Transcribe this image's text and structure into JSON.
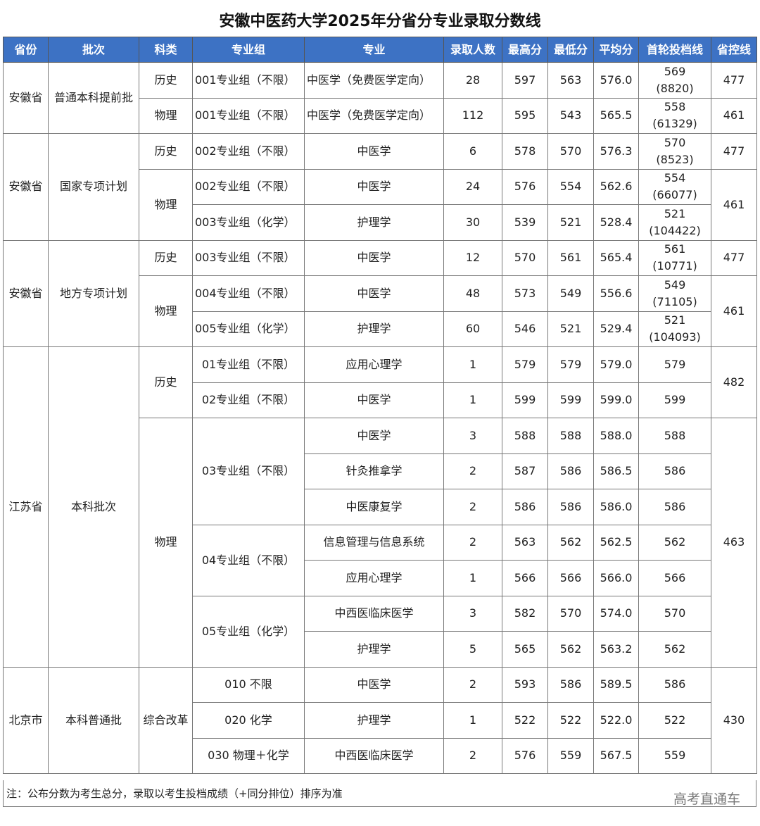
{
  "title": "安徽中医药大学2025年分省分专业录取分数线",
  "header_color": "#3d72c4",
  "columns": [
    "省份",
    "批次",
    "科类",
    "专业组",
    "专业",
    "录取人数",
    "最高分",
    "最低分",
    "平均分",
    "首轮投档线",
    "省控线"
  ],
  "rows": [
    [
      {
        "t": "安徽省",
        "rs": 2
      },
      {
        "t": "普通本科提前批",
        "rs": 2
      },
      "历史",
      "001专业组（不限）",
      "中医学（免费医学定向）",
      "28",
      "597",
      "563",
      "576.0",
      [
        "569",
        "(8820)"
      ],
      "477"
    ],
    [
      "物理",
      "001专业组（不限）",
      "中医学（免费医学定向）",
      "112",
      "595",
      "543",
      "565.5",
      [
        "558",
        "(61329)"
      ],
      "461"
    ],
    [
      {
        "t": "安徽省",
        "rs": 3
      },
      {
        "t": "国家专项计划",
        "rs": 3
      },
      "历史",
      "002专业组（不限）",
      "中医学",
      "6",
      "578",
      "570",
      "576.3",
      [
        "570",
        "(8523)"
      ],
      "477"
    ],
    [
      {
        "t": "物理",
        "rs": 2
      },
      "002专业组（不限）",
      "中医学",
      "24",
      "576",
      "554",
      "562.6",
      [
        "554",
        "(66077)"
      ],
      {
        "t": "461",
        "rs": 2
      }
    ],
    [
      "003专业组（化学）",
      "护理学",
      "30",
      "539",
      "521",
      "528.4",
      [
        "521",
        "(104422)"
      ]
    ],
    [
      {
        "t": "安徽省",
        "rs": 3
      },
      {
        "t": "地方专项计划",
        "rs": 3
      },
      "历史",
      "003专业组（不限）",
      "中医学",
      "12",
      "570",
      "561",
      "565.4",
      [
        "561",
        "(10771)"
      ],
      "477"
    ],
    [
      {
        "t": "物理",
        "rs": 2
      },
      "004专业组（不限）",
      "中医学",
      "48",
      "573",
      "549",
      "556.6",
      [
        "549",
        "(71105)"
      ],
      {
        "t": "461",
        "rs": 2
      }
    ],
    [
      "005专业组（化学）",
      "护理学",
      "60",
      "546",
      "521",
      "529.4",
      [
        "521",
        "(104093)"
      ]
    ],
    [
      {
        "t": "江苏省",
        "rs": 9
      },
      {
        "t": "本科批次",
        "rs": 9
      },
      {
        "t": "历史",
        "rs": 2
      },
      "01专业组（不限）",
      "应用心理学",
      "1",
      "579",
      "579",
      "579.0",
      "579",
      {
        "t": "482",
        "rs": 2
      }
    ],
    [
      "02专业组（不限）",
      "中医学",
      "1",
      "599",
      "599",
      "599.0",
      "599"
    ],
    [
      {
        "t": "物理",
        "rs": 7
      },
      {
        "t": "03专业组（不限）",
        "rs": 3
      },
      "中医学",
      "3",
      "588",
      "588",
      "588.0",
      "588",
      {
        "t": "463",
        "rs": 7
      }
    ],
    [
      "针灸推拿学",
      "2",
      "587",
      "586",
      "586.5",
      "586"
    ],
    [
      "中医康复学",
      "2",
      "586",
      "586",
      "586.0",
      "586"
    ],
    [
      {
        "t": "04专业组（不限）",
        "rs": 2
      },
      "信息管理与信息系统",
      "2",
      "563",
      "562",
      "562.5",
      "562"
    ],
    [
      "应用心理学",
      "1",
      "566",
      "566",
      "566.0",
      "566"
    ],
    [
      {
        "t": "05专业组（化学）",
        "rs": 2
      },
      "中西医临床医学",
      "3",
      "582",
      "570",
      "574.0",
      "570"
    ],
    [
      "护理学",
      "5",
      "565",
      "562",
      "563.2",
      "562"
    ],
    [
      {
        "t": "北京市",
        "rs": 3
      },
      {
        "t": "本科普通批",
        "rs": 3
      },
      {
        "t": "综合改革",
        "rs": 3
      },
      "010 不限",
      "中医学",
      "2",
      "593",
      "586",
      "589.5",
      "586",
      {
        "t": "430",
        "rs": 3
      }
    ],
    [
      "020 化学",
      "护理学",
      "1",
      "522",
      "522",
      "522.0",
      "522"
    ],
    [
      "030 物理＋化学",
      "中西医临床医学",
      "2",
      "576",
      "559",
      "567.5",
      "559"
    ]
  ],
  "note": "注：公布分数为考生总分，录取以考生投档成绩（+同分排位）排序为准",
  "watermark": "高考直通车"
}
